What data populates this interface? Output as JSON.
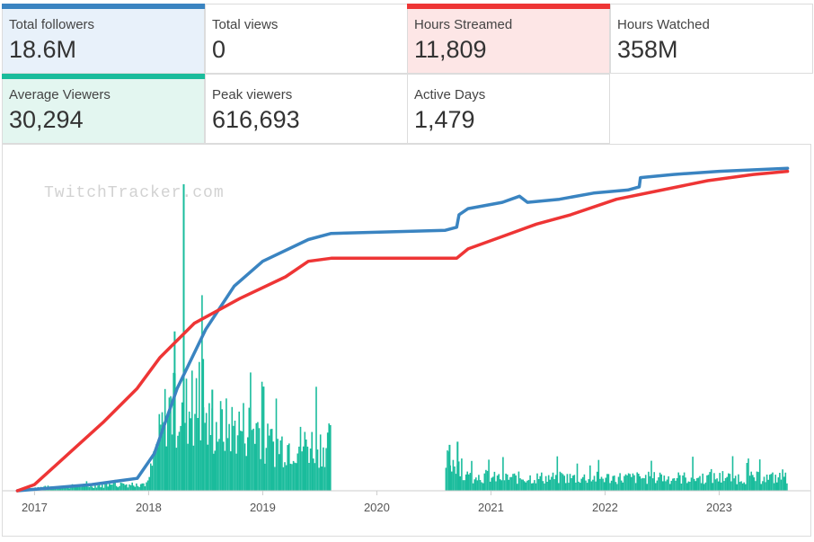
{
  "stats": [
    {
      "label": "Total followers",
      "value": "18.6M",
      "bg": "#e8f1fa",
      "bar": "#3a84c1"
    },
    {
      "label": "Total views",
      "value": "0",
      "bg": "#ffffff",
      "bar": null
    },
    {
      "label": "Hours Streamed",
      "value": "11,809",
      "bg": "#fde6e6",
      "bar": "#ee3535"
    },
    {
      "label": "Hours Watched",
      "value": "358M",
      "bg": "#ffffff",
      "bar": null
    },
    {
      "label": "Average Viewers",
      "value": "30,294",
      "bg": "#e3f6f0",
      "bar": "#1abc9c"
    },
    {
      "label": "Peak viewers",
      "value": "616,693",
      "bg": "#ffffff",
      "bar": null
    },
    {
      "label": "Active Days",
      "value": "1,479",
      "bg": "#ffffff",
      "bar": null
    }
  ],
  "watermark": "TwitchTracker.com",
  "chart_data": {
    "type": "line",
    "x_ticks": [
      "2017",
      "2018",
      "2019",
      "2020",
      "2021",
      "2022",
      "2023"
    ],
    "xlim": [
      2016.8,
      2023.65
    ],
    "colors": {
      "followers": "#3a84c1",
      "hours_streamed": "#ee3535",
      "viewers": "#1abc9c"
    },
    "series": [
      {
        "key": "followers",
        "points": [
          [
            2016.85,
            0.0
          ],
          [
            2017.5,
            0.02
          ],
          [
            2017.9,
            0.04
          ],
          [
            2018.05,
            0.12
          ],
          [
            2018.25,
            0.33
          ],
          [
            2018.5,
            0.52
          ],
          [
            2018.75,
            0.66
          ],
          [
            2019.0,
            0.74
          ],
          [
            2019.4,
            0.81
          ],
          [
            2019.6,
            0.83
          ],
          [
            2020.6,
            0.84
          ],
          [
            2020.7,
            0.85
          ],
          [
            2020.72,
            0.89
          ],
          [
            2020.8,
            0.91
          ],
          [
            2021.1,
            0.93
          ],
          [
            2021.25,
            0.95
          ],
          [
            2021.32,
            0.93
          ],
          [
            2021.6,
            0.94
          ],
          [
            2021.9,
            0.96
          ],
          [
            2022.2,
            0.97
          ],
          [
            2022.3,
            0.98
          ],
          [
            2022.31,
            1.01
          ],
          [
            2022.6,
            1.02
          ],
          [
            2023.0,
            1.03
          ],
          [
            2023.6,
            1.04
          ]
        ]
      },
      {
        "key": "hours_streamed",
        "points": [
          [
            2016.85,
            0.0
          ],
          [
            2017.0,
            0.02
          ],
          [
            2017.3,
            0.12
          ],
          [
            2017.6,
            0.22
          ],
          [
            2017.9,
            0.33
          ],
          [
            2018.1,
            0.43
          ],
          [
            2018.4,
            0.54
          ],
          [
            2018.8,
            0.62
          ],
          [
            2019.2,
            0.69
          ],
          [
            2019.4,
            0.74
          ],
          [
            2019.6,
            0.75
          ],
          [
            2020.6,
            0.75
          ],
          [
            2020.7,
            0.75
          ],
          [
            2020.8,
            0.78
          ],
          [
            2021.1,
            0.82
          ],
          [
            2021.4,
            0.86
          ],
          [
            2021.7,
            0.89
          ],
          [
            2022.1,
            0.94
          ],
          [
            2022.5,
            0.97
          ],
          [
            2022.9,
            1.0
          ],
          [
            2023.3,
            1.02
          ],
          [
            2023.6,
            1.03
          ]
        ]
      }
    ],
    "viewer_segments": [
      [
        2016.95,
        2019.6
      ],
      [
        2020.6,
        2023.6
      ]
    ],
    "viewer_peak": {
      "x": 2018.3,
      "value": 616693
    }
  }
}
